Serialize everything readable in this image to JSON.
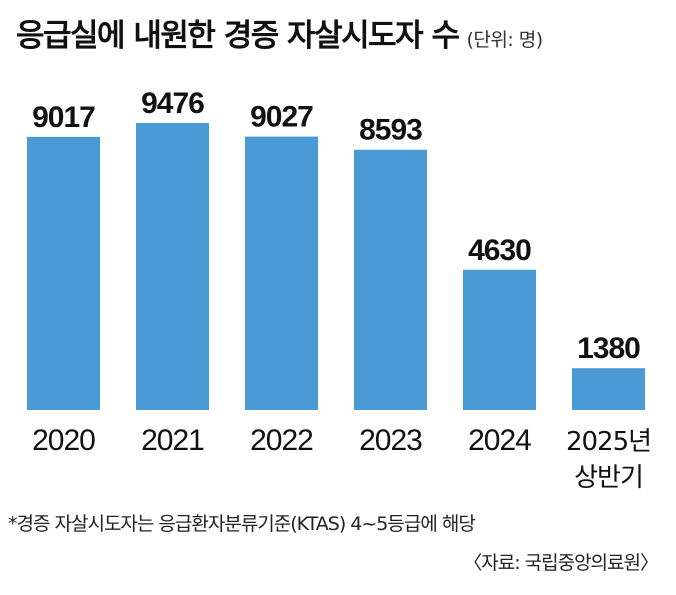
{
  "header": {
    "title": "응급실에 내원한 경증 자살시도자 수",
    "unit": "(단위: 명)"
  },
  "chart_data": {
    "type": "bar",
    "categories": [
      "2020",
      "2021",
      "2022",
      "2023",
      "2024",
      "2025년\n상반기"
    ],
    "values": [
      9017,
      9476,
      9027,
      8593,
      4630,
      1380
    ],
    "title": "응급실에 내원한 경증 자살시도자 수",
    "ylabel": "",
    "xlabel": "",
    "ylim": [
      0,
      9476
    ],
    "grid": false,
    "bar_color": "#4a9ad6"
  },
  "footnote": "*경증 자살시도자는 응급환자분류기준(KTAS) 4~5등급에 해당",
  "source": "〈자료: 국립중앙의료원〉"
}
